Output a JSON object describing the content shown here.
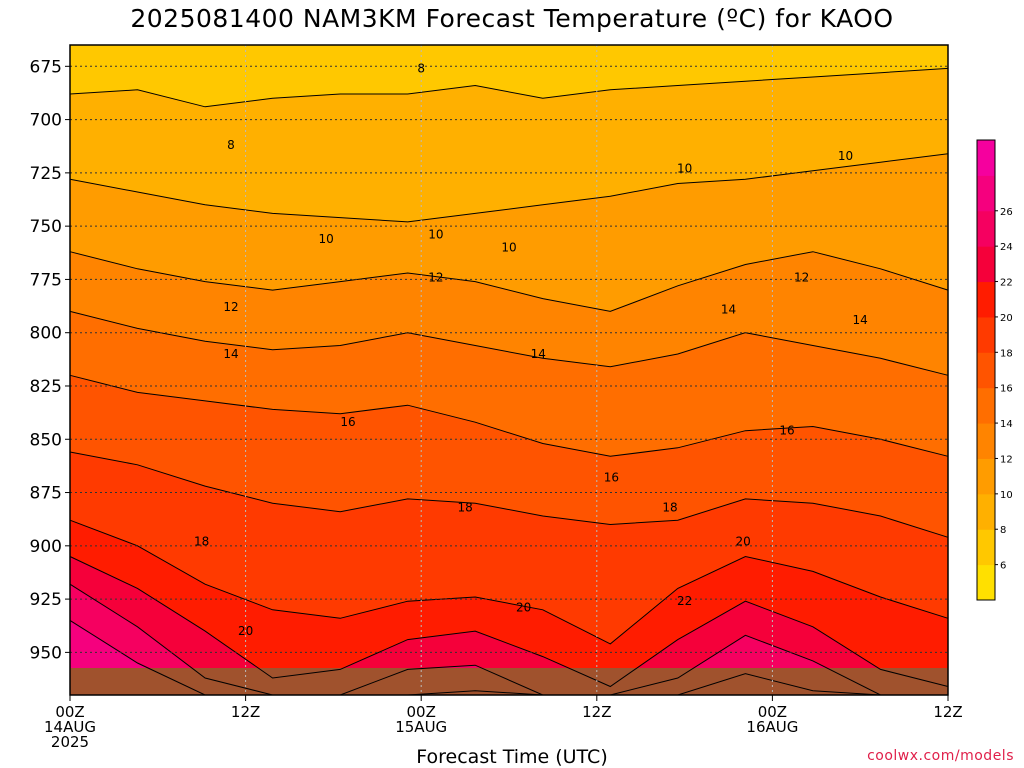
{
  "chart_data": {
    "type": "heatmap",
    "title": "2025081400 NAM3KM Forecast Temperature (ºC) for KAOO",
    "xlabel": "Forecast Time (UTC)",
    "ylabel": "",
    "y_axis": {
      "unit": "hPa",
      "range": [
        970,
        665
      ],
      "ticks": [
        675,
        700,
        725,
        750,
        775,
        800,
        825,
        850,
        875,
        900,
        925,
        950
      ]
    },
    "x_axis": {
      "range_hours": [
        0,
        60
      ],
      "ticks": [
        {
          "hour": 0,
          "lines": [
            "00Z",
            "14AUG",
            "2025"
          ]
        },
        {
          "hour": 12,
          "lines": [
            "12Z"
          ]
        },
        {
          "hour": 24,
          "lines": [
            "00Z",
            "15AUG"
          ]
        },
        {
          "hour": 36,
          "lines": [
            "12Z"
          ]
        },
        {
          "hour": 48,
          "lines": [
            "00Z",
            "16AUG"
          ]
        },
        {
          "hour": 60,
          "lines": [
            "12Z"
          ]
        }
      ]
    },
    "grid": true,
    "colorbar": {
      "placement": "right",
      "labels": [
        6,
        8,
        10,
        12,
        14,
        16,
        18,
        20,
        22,
        24,
        26
      ],
      "colors": [
        "#ffe000",
        "#ffc800",
        "#ffb000",
        "#ff9c00",
        "#ff8400",
        "#ff6e00",
        "#ff5400",
        "#ff3a00",
        "#ff1c00",
        "#f5003a",
        "#f50060",
        "#f5007e",
        "#f5009e"
      ]
    },
    "ground_color": "#a0522d",
    "isotherms": [
      {
        "value": 8,
        "pressure": [
          688,
          686,
          694,
          690,
          688,
          688,
          684,
          690,
          686,
          684,
          682,
          680,
          678,
          676
        ]
      },
      {
        "value": 10,
        "pressure": [
          728,
          734,
          740,
          744,
          746,
          748,
          744,
          740,
          736,
          730,
          728,
          724,
          720,
          716
        ]
      },
      {
        "value": 12,
        "pressure": [
          762,
          770,
          776,
          780,
          776,
          772,
          776,
          784,
          790,
          778,
          768,
          762,
          770,
          780
        ]
      },
      {
        "value": 14,
        "pressure": [
          790,
          798,
          804,
          808,
          806,
          800,
          806,
          812,
          816,
          810,
          800,
          806,
          812,
          820
        ]
      },
      {
        "value": 16,
        "pressure": [
          820,
          828,
          832,
          836,
          838,
          834,
          842,
          852,
          858,
          854,
          846,
          844,
          850,
          858
        ]
      },
      {
        "value": 18,
        "pressure": [
          856,
          862,
          872,
          880,
          884,
          878,
          880,
          886,
          890,
          888,
          878,
          880,
          886,
          896
        ]
      },
      {
        "value": 20,
        "pressure": [
          888,
          900,
          918,
          930,
          934,
          926,
          924,
          930,
          946,
          920,
          905,
          912,
          924,
          934
        ]
      },
      {
        "value": 22,
        "pressure": [
          905,
          920,
          940,
          962,
          958,
          944,
          940,
          952,
          966,
          944,
          926,
          938,
          958,
          966
        ]
      },
      {
        "value": 24,
        "pressure": [
          918,
          938,
          962,
          974,
          970,
          958,
          956,
          970,
          974,
          962,
          942,
          954,
          974,
          974
        ]
      },
      {
        "value": 26,
        "pressure": [
          935,
          955,
          974,
          974,
          974,
          970,
          968,
          974,
          974,
          972,
          960,
          968,
          974,
          974
        ]
      }
    ],
    "contour_labels": [
      {
        "text": "8",
        "hour": 24.0,
        "pressure": 676
      },
      {
        "text": "8",
        "hour": 11.0,
        "pressure": 712
      },
      {
        "text": "10",
        "hour": 17.5,
        "pressure": 756
      },
      {
        "text": "10",
        "hour": 25.0,
        "pressure": 754
      },
      {
        "text": "10",
        "hour": 30.0,
        "pressure": 760
      },
      {
        "text": "10",
        "hour": 42.0,
        "pressure": 723
      },
      {
        "text": "10",
        "hour": 53.0,
        "pressure": 717
      },
      {
        "text": "12",
        "hour": 11.0,
        "pressure": 788
      },
      {
        "text": "12",
        "hour": 25.0,
        "pressure": 774
      },
      {
        "text": "12",
        "hour": 50.0,
        "pressure": 774
      },
      {
        "text": "14",
        "hour": 11.0,
        "pressure": 810
      },
      {
        "text": "14",
        "hour": 32.0,
        "pressure": 810
      },
      {
        "text": "14",
        "hour": 45.0,
        "pressure": 789
      },
      {
        "text": "14",
        "hour": 54.0,
        "pressure": 794
      },
      {
        "text": "16",
        "hour": 19.0,
        "pressure": 842
      },
      {
        "text": "16",
        "hour": 37.0,
        "pressure": 868
      },
      {
        "text": "16",
        "hour": 49.0,
        "pressure": 846
      },
      {
        "text": "18",
        "hour": 27.0,
        "pressure": 882
      },
      {
        "text": "18",
        "hour": 41.0,
        "pressure": 882
      },
      {
        "text": "18",
        "hour": 9.0,
        "pressure": 898
      },
      {
        "text": "20",
        "hour": 12.0,
        "pressure": 940
      },
      {
        "text": "20",
        "hour": 31.0,
        "pressure": 929
      },
      {
        "text": "20",
        "hour": 46.0,
        "pressure": 898
      },
      {
        "text": "22",
        "hour": 42.0,
        "pressure": 926
      }
    ]
  },
  "credit": "coolwx.com/models"
}
